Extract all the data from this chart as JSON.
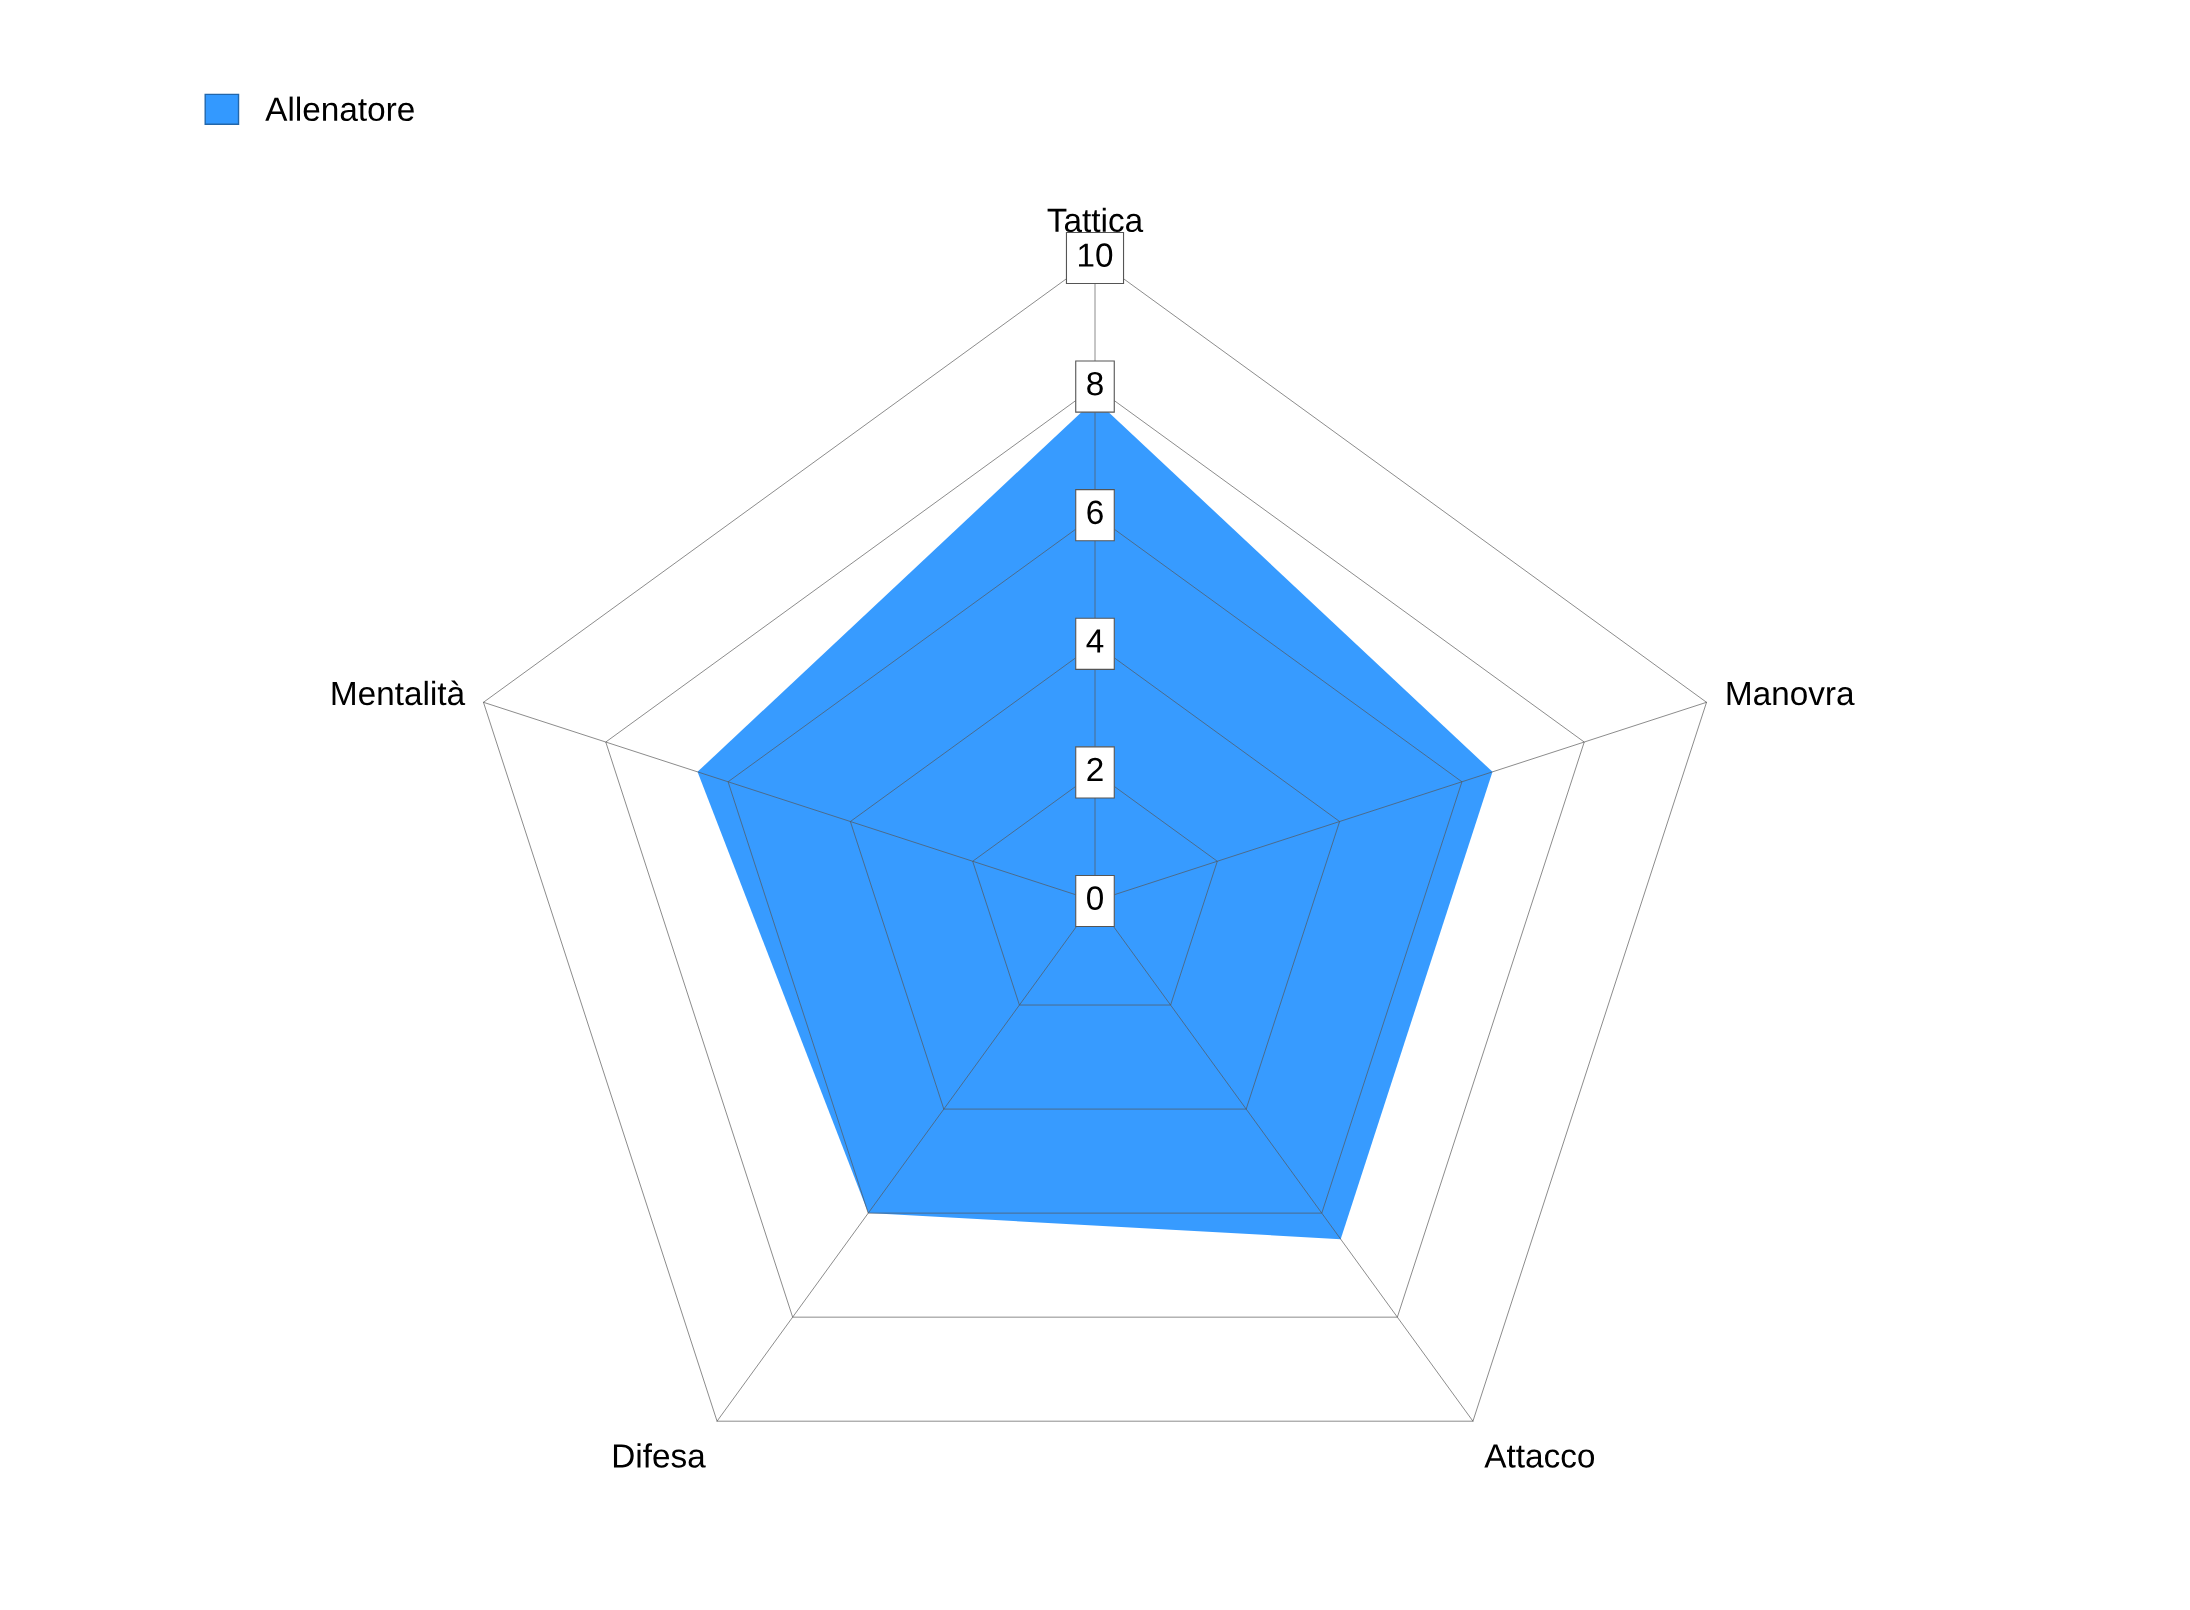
{
  "chart_data": {
    "type": "radar",
    "categories": [
      "Tattica",
      "Manovra",
      "Attacco",
      "Difesa",
      "Mentalità"
    ],
    "series": [
      {
        "name": "Allenatore",
        "color": "#3399ff",
        "values": [
          7.8,
          6.5,
          6.5,
          6.0,
          6.5
        ]
      }
    ],
    "ylim": [
      0,
      10
    ],
    "yticks": [
      0,
      2,
      4,
      6,
      8,
      10
    ],
    "grid": true,
    "legend": "top left"
  }
}
